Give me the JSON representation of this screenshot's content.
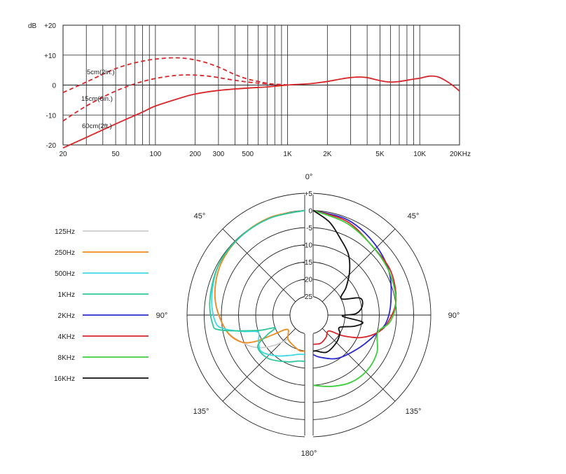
{
  "chart_data": [
    {
      "type": "line",
      "title": "",
      "xlabel": "",
      "ylabel": "dB",
      "x_scale": "log",
      "xlim": [
        20,
        20000
      ],
      "ylim": [
        -20,
        20
      ],
      "grid": true,
      "x_ticks": [
        {
          "value": 20,
          "label": "20"
        },
        {
          "value": 50,
          "label": "50"
        },
        {
          "value": 100,
          "label": "100"
        },
        {
          "value": 200,
          "label": "200"
        },
        {
          "value": 300,
          "label": "300"
        },
        {
          "value": 500,
          "label": "500"
        },
        {
          "value": 1000,
          "label": "1K"
        },
        {
          "value": 2000,
          "label": "2K"
        },
        {
          "value": 5000,
          "label": "5K"
        },
        {
          "value": 10000,
          "label": "10K"
        },
        {
          "value": 20000,
          "label": "20KHz"
        }
      ],
      "x_gridlines": [
        20,
        30,
        40,
        50,
        60,
        70,
        80,
        90,
        100,
        200,
        300,
        400,
        500,
        600,
        700,
        800,
        900,
        1000,
        2000,
        3000,
        4000,
        5000,
        6000,
        7000,
        8000,
        9000,
        10000,
        20000
      ],
      "y_ticks": [
        {
          "value": 20,
          "label": "+20"
        },
        {
          "value": 10,
          "label": "+10"
        },
        {
          "value": 0,
          "label": "0"
        },
        {
          "value": -10,
          "label": "-10"
        },
        {
          "value": -20,
          "label": "-20"
        }
      ],
      "series": [
        {
          "name": "5cm(2in.)",
          "style": "dashed",
          "color": "#d9262a",
          "points": [
            [
              20,
              -2.5
            ],
            [
              30,
              1
            ],
            [
              50,
              5.5
            ],
            [
              80,
              8
            ],
            [
              120,
              9
            ],
            [
              160,
              9
            ],
            [
              220,
              8
            ],
            [
              300,
              6
            ],
            [
              400,
              3.5
            ],
            [
              500,
              2
            ],
            [
              600,
              1.2
            ],
            [
              700,
              0.6
            ],
            [
              800,
              0.3
            ],
            [
              1000,
              0.1
            ]
          ]
        },
        {
          "name": "15cm(6in.)",
          "style": "dashed",
          "color": "#d9262a",
          "points": [
            [
              20,
              -12
            ],
            [
              30,
              -7
            ],
            [
              50,
              -2
            ],
            [
              80,
              1.2
            ],
            [
              120,
              2.8
            ],
            [
              170,
              3.4
            ],
            [
              250,
              3
            ],
            [
              350,
              2
            ],
            [
              500,
              1
            ],
            [
              700,
              0.4
            ],
            [
              1000,
              0
            ]
          ]
        },
        {
          "name": "60cm(2ft.)",
          "style": "solid",
          "color": "#d9262a",
          "points": [
            [
              20,
              -21
            ],
            [
              30,
              -17.5
            ],
            [
              50,
              -13
            ],
            [
              80,
              -9
            ],
            [
              100,
              -7
            ],
            [
              150,
              -4.5
            ],
            [
              200,
              -3
            ],
            [
              300,
              -1.8
            ],
            [
              500,
              -1
            ],
            [
              700,
              -0.6
            ],
            [
              1000,
              0
            ],
            [
              1500,
              0.5
            ],
            [
              2000,
              1.2
            ],
            [
              2500,
              2
            ],
            [
              3000,
              2.5
            ],
            [
              3500,
              2.7
            ],
            [
              4000,
              2.5
            ],
            [
              5000,
              1.5
            ],
            [
              6000,
              1
            ],
            [
              7000,
              1.2
            ],
            [
              9000,
              2
            ],
            [
              10000,
              2.3
            ],
            [
              12000,
              3
            ],
            [
              14000,
              2.6
            ],
            [
              17000,
              0.5
            ],
            [
              20000,
              -2
            ]
          ]
        }
      ]
    },
    {
      "type": "polar",
      "title": "",
      "r_unit": "dB",
      "r_ticks": [
        {
          "value": 5,
          "label": "+5"
        },
        {
          "value": 0,
          "label": "0"
        },
        {
          "value": -5,
          "label": "-5"
        },
        {
          "value": -10,
          "label": "-10"
        },
        {
          "value": -15,
          "label": "-15"
        },
        {
          "value": -20,
          "label": "-20"
        },
        {
          "value": -25,
          "label": "-25"
        }
      ],
      "angle_labels": [
        {
          "angle": 0,
          "label": "0°"
        },
        {
          "angle": 45,
          "label": "45°"
        },
        {
          "angle": 90,
          "label": "90°"
        },
        {
          "angle": 135,
          "label": "135°"
        },
        {
          "angle": 180,
          "label": "180°"
        },
        {
          "angle": 225,
          "label": "135°"
        },
        {
          "angle": 270,
          "label": "90°"
        },
        {
          "angle": 315,
          "label": "45°"
        }
      ],
      "legend_position": "left",
      "series": [
        {
          "name": "125Hz",
          "color": "#cccccc",
          "side": "left",
          "points": [
            [
              0,
              0
            ],
            [
              20,
              -0.5
            ],
            [
              40,
              -1
            ],
            [
              60,
              -2
            ],
            [
              80,
              -4
            ],
            [
              100,
              -7
            ],
            [
              115,
              -11
            ],
            [
              125,
              -14
            ],
            [
              135,
              -18
            ],
            [
              145,
              -22
            ]
          ]
        },
        {
          "name": "250Hz",
          "color": "#f08a1c",
          "side": "left",
          "points": [
            [
              0,
              0
            ],
            [
              20,
              -0.3
            ],
            [
              40,
              -1
            ],
            [
              60,
              -2
            ],
            [
              80,
              -4
            ],
            [
              100,
              -7
            ],
            [
              112,
              -10
            ],
            [
              118,
              -14
            ],
            [
              122,
              -20
            ],
            [
              130,
              -24
            ],
            [
              145,
              -22
            ],
            [
              160,
              -21
            ],
            [
              172,
              -20
            ],
            [
              180,
              -20
            ]
          ]
        },
        {
          "name": "500Hz",
          "color": "#40d9e6",
          "side": "left",
          "points": [
            [
              0,
              0
            ],
            [
              20,
              -0.5
            ],
            [
              40,
              -1
            ],
            [
              60,
              -1.5
            ],
            [
              80,
              -3
            ],
            [
              95,
              -4.5
            ],
            [
              100,
              -7
            ],
            [
              105,
              -12
            ],
            [
              110,
              -16
            ],
            [
              120,
              -15
            ],
            [
              130,
              -14
            ],
            [
              145,
              -16
            ],
            [
              160,
              -18
            ],
            [
              172,
              -19
            ],
            [
              180,
              -19
            ]
          ]
        },
        {
          "name": "1KHz",
          "color": "#2fc79a",
          "side": "left",
          "points": [
            [
              0,
              0
            ],
            [
              20,
              -0.5
            ],
            [
              40,
              -1
            ],
            [
              60,
              -1.5
            ],
            [
              80,
              -2.5
            ],
            [
              95,
              -3.5
            ],
            [
              100,
              -5.5
            ],
            [
              108,
              -16
            ],
            [
              113,
              -21
            ],
            [
              118,
              -18
            ],
            [
              124,
              -14
            ],
            [
              140,
              -14
            ],
            [
              160,
              -16
            ],
            [
              172,
              -17
            ],
            [
              180,
              -17
            ]
          ]
        },
        {
          "name": "2KHz",
          "color": "#2a2ad0",
          "side": "right",
          "points": [
            [
              0,
              0
            ],
            [
              20,
              -1
            ],
            [
              40,
              -3
            ],
            [
              60,
              -5
            ],
            [
              80,
              -7.5
            ],
            [
              95,
              -9
            ],
            [
              105,
              -11
            ],
            [
              125,
              -14
            ],
            [
              150,
              -16
            ],
            [
              170,
              -18
            ],
            [
              180,
              -19
            ]
          ]
        },
        {
          "name": "4KHz",
          "color": "#d9262a",
          "side": "right",
          "points": [
            [
              0,
              0
            ],
            [
              20,
              -1.5
            ],
            [
              40,
              -4
            ],
            [
              60,
              -4.5
            ],
            [
              80,
              -6
            ],
            [
              95,
              -8.5
            ],
            [
              105,
              -11
            ],
            [
              115,
              -15
            ],
            [
              125,
              -20
            ],
            [
              135,
              -24
            ],
            [
              150,
              -23
            ],
            [
              165,
              -22
            ],
            [
              180,
              -22
            ]
          ]
        },
        {
          "name": "8KHz",
          "color": "#3ccf3c",
          "side": "right",
          "points": [
            [
              0,
              0
            ],
            [
              20,
              -2
            ],
            [
              40,
              -4
            ],
            [
              60,
              -5
            ],
            [
              80,
              -6
            ],
            [
              95,
              -8
            ],
            [
              105,
              -11
            ],
            [
              120,
              -9
            ],
            [
              135,
              -8
            ],
            [
              150,
              -8
            ],
            [
              165,
              -9
            ],
            [
              180,
              -10
            ]
          ]
        },
        {
          "name": "16KHz",
          "color": "#111111",
          "side": "right",
          "points": [
            [
              0,
              0
            ],
            [
              10,
              -3
            ],
            [
              20,
              -7
            ],
            [
              30,
              -10
            ],
            [
              40,
              -14
            ],
            [
              50,
              -18
            ],
            [
              60,
              -21
            ],
            [
              70,
              -16
            ],
            [
              80,
              -16
            ],
            [
              88,
              -18
            ],
            [
              92,
              -22
            ],
            [
              98,
              -16
            ],
            [
              105,
              -18
            ],
            [
              115,
              -22
            ],
            [
              125,
              -21
            ],
            [
              140,
              -20
            ],
            [
              160,
              -19
            ],
            [
              175,
              -20
            ],
            [
              180,
              -20
            ]
          ]
        }
      ]
    }
  ]
}
